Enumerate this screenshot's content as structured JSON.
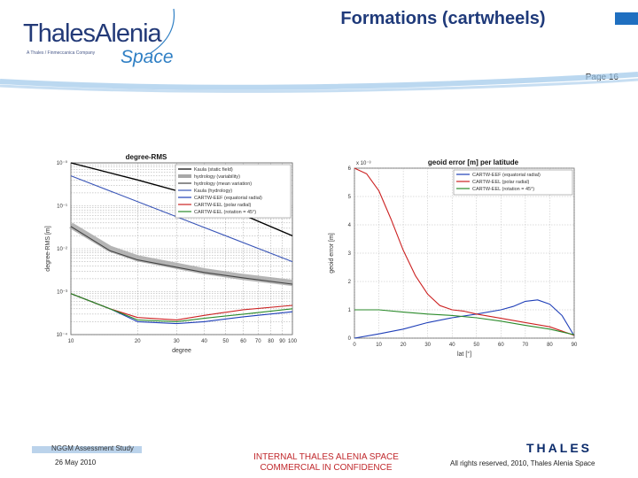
{
  "header": {
    "logo_text": "ThalesAlenia",
    "logo_tagline": "A Thales / Finmeccanica Company",
    "logo_space": "Space",
    "title": "Formations (cartwheels)",
    "page_label": "Page 16"
  },
  "colors": {
    "navy": "#1f3a7a",
    "brand_blue": "#2f7fc4",
    "confidential_red": "#c0282c"
  },
  "chart_data": [
    {
      "type": "line",
      "title": "degree-RMS",
      "xlabel": "degree",
      "ylabel": "degree-RMS [m]",
      "x_scale": "log",
      "y_scale": "log",
      "xlim": [
        10,
        100
      ],
      "ylim": [
        0.0001,
        1
      ],
      "y_tick_labels": [
        "10⁻⁰",
        "10⁻¹",
        "10⁻²",
        "10⁻³",
        "10⁻⁴"
      ],
      "x_tick_labels": [
        "10",
        "20",
        "30",
        "40",
        "50",
        "60",
        "70",
        "80",
        "90",
        "100"
      ],
      "grid": true,
      "legend_position": "top-right",
      "series": [
        {
          "name": "Kaula (static field)",
          "color": "#000000",
          "x": [
            10,
            20,
            40,
            100
          ],
          "y": [
            1.0,
            0.4,
            0.15,
            0.02
          ]
        },
        {
          "name": "hydrology (variability)",
          "color": "#a8a8a8",
          "x": [
            10,
            15,
            20,
            30,
            40,
            60,
            100
          ],
          "y": [
            0.035,
            0.01,
            0.006,
            0.004,
            0.003,
            0.0022,
            0.0016
          ]
        },
        {
          "name": "hydrology (mean variation)",
          "color": "#444444",
          "x": [
            10,
            15,
            20,
            30,
            40,
            60,
            100
          ],
          "y": [
            0.033,
            0.009,
            0.0055,
            0.0037,
            0.0028,
            0.0021,
            0.0015
          ]
        },
        {
          "name": "Kaula (hydrology)",
          "color": "#3a56b8",
          "x": [
            10,
            100
          ],
          "y": [
            0.5,
            0.005
          ]
        },
        {
          "name": "CARTW-EEF (equatorial radial)",
          "color": "#1f3fb8",
          "x": [
            10,
            15,
            20,
            30,
            40,
            60,
            100
          ],
          "y": [
            0.0009,
            0.0004,
            0.0002,
            0.00018,
            0.0002,
            0.00026,
            0.00034
          ]
        },
        {
          "name": "CARTW-EEL (polar radial)",
          "color": "#cc2222",
          "x": [
            10,
            15,
            20,
            30,
            40,
            60,
            100
          ],
          "y": [
            0.0009,
            0.0004,
            0.00025,
            0.00022,
            0.00028,
            0.00038,
            0.00048
          ]
        },
        {
          "name": "CARTW-EEL (rotation = 45°)",
          "color": "#2a8a2a",
          "x": [
            10,
            15,
            20,
            30,
            40,
            60,
            100
          ],
          "y": [
            0.0009,
            0.0004,
            0.00022,
            0.0002,
            0.00024,
            0.0003,
            0.0004
          ]
        }
      ]
    },
    {
      "type": "line",
      "title": "geoid error [m] per latitude",
      "xlabel": "lat [°]",
      "ylabel": "geoid error [m]",
      "exponent_label": "x 10⁻³",
      "xlim": [
        0,
        90
      ],
      "ylim": [
        0,
        6
      ],
      "x_ticks": [
        0,
        10,
        20,
        30,
        40,
        50,
        60,
        70,
        80,
        90
      ],
      "y_ticks": [
        0,
        1,
        2,
        3,
        4,
        5,
        6
      ],
      "grid": true,
      "legend_position": "top-right",
      "series": [
        {
          "name": "CARTW-EEF (equatorial radial)",
          "color": "#1f3fb8",
          "x": [
            0,
            10,
            20,
            30,
            40,
            50,
            60,
            65,
            70,
            75,
            80,
            85,
            90
          ],
          "y": [
            0.0,
            0.15,
            0.32,
            0.55,
            0.72,
            0.85,
            1.0,
            1.12,
            1.3,
            1.35,
            1.2,
            0.8,
            0.08
          ]
        },
        {
          "name": "CARTW-EEL (polar radial)",
          "color": "#cc2222",
          "x": [
            0,
            5,
            10,
            15,
            20,
            25,
            30,
            35,
            40,
            45,
            50,
            60,
            70,
            80,
            90
          ],
          "y": [
            6.0,
            5.8,
            5.2,
            4.2,
            3.1,
            2.2,
            1.55,
            1.15,
            1.0,
            0.95,
            0.85,
            0.7,
            0.55,
            0.4,
            0.1
          ]
        },
        {
          "name": "CARTW-EEL (rotation = 45°)",
          "color": "#2a8a2a",
          "x": [
            0,
            10,
            20,
            30,
            40,
            50,
            60,
            70,
            80,
            90
          ],
          "y": [
            1.0,
            1.0,
            0.92,
            0.85,
            0.8,
            0.72,
            0.6,
            0.45,
            0.32,
            0.12
          ]
        }
      ]
    }
  ],
  "footer": {
    "study_label": "NGGM Assessment Study",
    "date": "26 May 2010",
    "confidential_line1": "INTERNAL THALES ALENIA SPACE",
    "confidential_line2": "COMMERCIAL IN CONFIDENCE",
    "rights": "All rights reserved, 2010, Thales Alenia Space",
    "thales_logo": "THALES"
  }
}
